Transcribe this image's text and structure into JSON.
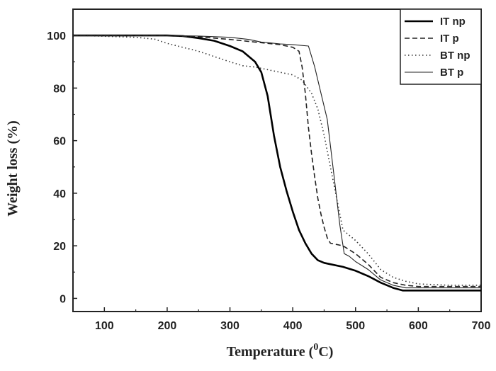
{
  "chart_data": {
    "type": "line",
    "xlabel": "Temperature (",
    "xlabel_sup": "0",
    "xlabel_end": "C)",
    "ylabel": "Weight loss (%)",
    "xlim": [
      50,
      700
    ],
    "ylim": [
      -5,
      110
    ],
    "xticks": [
      100,
      200,
      300,
      400,
      500,
      600,
      700
    ],
    "yticks": [
      0,
      20,
      40,
      60,
      80,
      100
    ],
    "legend_position": "top-right",
    "series": [
      {
        "name": "IT np",
        "style": "solid-thick",
        "color": "#000000",
        "points": [
          [
            50,
            100
          ],
          [
            100,
            100
          ],
          [
            150,
            100
          ],
          [
            200,
            100
          ],
          [
            225,
            99.8
          ],
          [
            250,
            99
          ],
          [
            275,
            98
          ],
          [
            300,
            96
          ],
          [
            320,
            94
          ],
          [
            340,
            90
          ],
          [
            350,
            86
          ],
          [
            360,
            77
          ],
          [
            370,
            62
          ],
          [
            380,
            50
          ],
          [
            390,
            41
          ],
          [
            400,
            33
          ],
          [
            410,
            26
          ],
          [
            420,
            21
          ],
          [
            430,
            17
          ],
          [
            440,
            14.5
          ],
          [
            450,
            13.5
          ],
          [
            460,
            13
          ],
          [
            480,
            12
          ],
          [
            500,
            10.5
          ],
          [
            520,
            8.5
          ],
          [
            540,
            6
          ],
          [
            560,
            4
          ],
          [
            575,
            3
          ],
          [
            600,
            3
          ],
          [
            650,
            3
          ],
          [
            700,
            3
          ]
        ]
      },
      {
        "name": "IT p",
        "style": "dashed",
        "color": "#222222",
        "points": [
          [
            50,
            100
          ],
          [
            100,
            100
          ],
          [
            150,
            100
          ],
          [
            200,
            100
          ],
          [
            250,
            99.5
          ],
          [
            300,
            98.5
          ],
          [
            340,
            97.5
          ],
          [
            380,
            96.5
          ],
          [
            400,
            95.5
          ],
          [
            410,
            94
          ],
          [
            415,
            88
          ],
          [
            420,
            78
          ],
          [
            425,
            65
          ],
          [
            430,
            55
          ],
          [
            435,
            46
          ],
          [
            440,
            38
          ],
          [
            445,
            32
          ],
          [
            450,
            27
          ],
          [
            455,
            23
          ],
          [
            460,
            21
          ],
          [
            480,
            20
          ],
          [
            500,
            17
          ],
          [
            520,
            13
          ],
          [
            540,
            8
          ],
          [
            560,
            6
          ],
          [
            580,
            5
          ],
          [
            600,
            4.5
          ],
          [
            650,
            4.5
          ],
          [
            700,
            4.5
          ]
        ]
      },
      {
        "name": "BT np",
        "style": "dotted",
        "color": "#333333",
        "points": [
          [
            50,
            100
          ],
          [
            100,
            99.7
          ],
          [
            150,
            99.3
          ],
          [
            180,
            98.6
          ],
          [
            200,
            97
          ],
          [
            250,
            94
          ],
          [
            300,
            90
          ],
          [
            320,
            88.5
          ],
          [
            340,
            88
          ],
          [
            360,
            87
          ],
          [
            380,
            86
          ],
          [
            400,
            85
          ],
          [
            415,
            83
          ],
          [
            430,
            78
          ],
          [
            440,
            72
          ],
          [
            450,
            62
          ],
          [
            460,
            50
          ],
          [
            470,
            38
          ],
          [
            480,
            26
          ],
          [
            490,
            24
          ],
          [
            500,
            22
          ],
          [
            520,
            17
          ],
          [
            540,
            11
          ],
          [
            560,
            8
          ],
          [
            580,
            6.5
          ],
          [
            600,
            5.5
          ],
          [
            650,
            5
          ],
          [
            700,
            5
          ]
        ]
      },
      {
        "name": "BT p",
        "style": "solid-thin",
        "color": "#222222",
        "points": [
          [
            50,
            100
          ],
          [
            100,
            100
          ],
          [
            150,
            100
          ],
          [
            200,
            100
          ],
          [
            250,
            99.8
          ],
          [
            300,
            99.3
          ],
          [
            330,
            98.5
          ],
          [
            350,
            97.5
          ],
          [
            380,
            96.8
          ],
          [
            400,
            96.5
          ],
          [
            425,
            96
          ],
          [
            435,
            88
          ],
          [
            445,
            78
          ],
          [
            455,
            68
          ],
          [
            465,
            48
          ],
          [
            475,
            28
          ],
          [
            482,
            17
          ],
          [
            490,
            16
          ],
          [
            500,
            14
          ],
          [
            510,
            12.5
          ],
          [
            520,
            11
          ],
          [
            540,
            7
          ],
          [
            560,
            5
          ],
          [
            580,
            4
          ],
          [
            600,
            4
          ],
          [
            650,
            4
          ],
          [
            700,
            4
          ]
        ]
      }
    ]
  }
}
